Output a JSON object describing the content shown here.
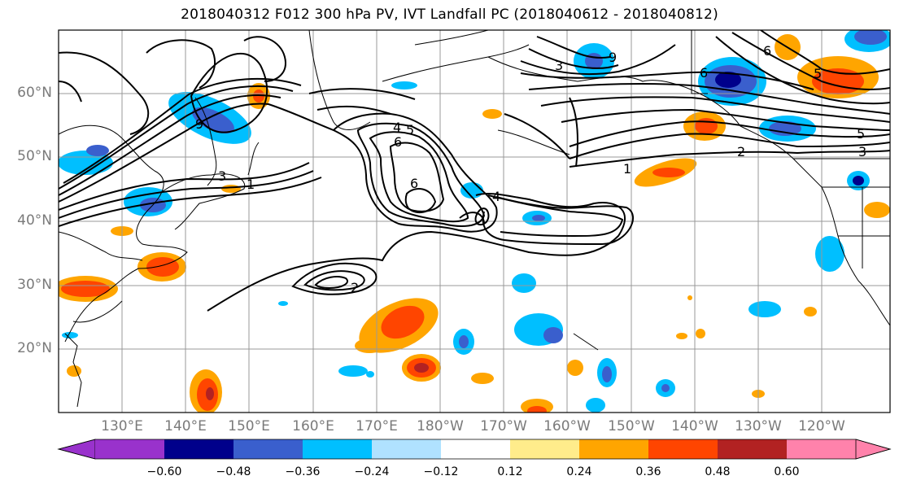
{
  "title": "2018040312 F012 300 hPa PV, IVT Landfall PC (2018040612 - 2018040812)",
  "lat_labels": [
    "60°N",
    "50°N",
    "40°N",
    "30°N",
    "20°N"
  ],
  "lon_labels": [
    "130°E",
    "140°E",
    "150°E",
    "160°E",
    "170°E",
    "180°W",
    "170°W",
    "160°W",
    "150°W",
    "140°W",
    "130°W",
    "120°W"
  ],
  "contour_labels": [
    "1",
    "2",
    "3",
    "4",
    "5",
    "6",
    "9"
  ],
  "colorbar": {
    "ticks": [
      "−0.60",
      "−0.48",
      "−0.36",
      "−0.24",
      "−0.12",
      "0.12",
      "0.24",
      "0.36",
      "0.48",
      "0.60"
    ],
    "colors": [
      "#9932cc",
      "#00008b",
      "#3a5fcd",
      "#00bfff",
      "#b0e2ff",
      "#ffffff",
      "#ffec8b",
      "#ffa500",
      "#ff4500",
      "#b22222",
      "#ff82ab"
    ]
  }
}
